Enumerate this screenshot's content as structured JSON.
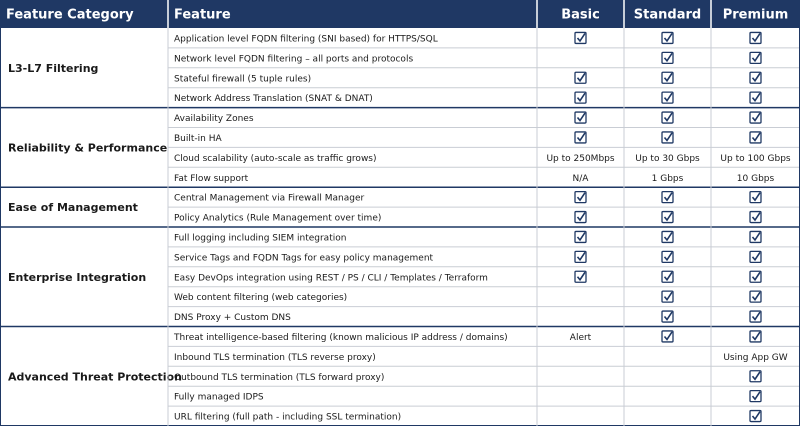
{
  "table": {
    "columns": [
      "Feature Category",
      "Feature",
      "Basic",
      "Standard",
      "Premium"
    ],
    "groups": [
      {
        "category": "L3-L7 Filtering",
        "rows": [
          {
            "feature": "Application level FQDN filtering (SNI based) for HTTPS/SQL",
            "cells": [
              true,
              true,
              true
            ]
          },
          {
            "feature": "Network level FQDN filtering – all ports and protocols",
            "cells": [
              null,
              true,
              true
            ]
          },
          {
            "feature": "Stateful firewall (5 tuple rules)",
            "cells": [
              true,
              true,
              true
            ]
          },
          {
            "feature": "Network Address Translation (SNAT & DNAT)",
            "cells": [
              true,
              true,
              true
            ]
          }
        ]
      },
      {
        "category": "Reliability & Performance",
        "rows": [
          {
            "feature": "Availability Zones",
            "cells": [
              true,
              true,
              true
            ]
          },
          {
            "feature": "Built-in HA",
            "cells": [
              true,
              true,
              true
            ]
          },
          {
            "feature": "Cloud scalability (auto-scale as traffic grows)",
            "cells": [
              "Up to 250Mbps",
              "Up to 30 Gbps",
              "Up to 100 Gbps"
            ]
          },
          {
            "feature": "Fat Flow support",
            "cells": [
              "N/A",
              "1 Gbps",
              "10 Gbps"
            ]
          }
        ]
      },
      {
        "category": "Ease of Management",
        "rows": [
          {
            "feature": "Central Management via Firewall Manager",
            "cells": [
              true,
              true,
              true
            ]
          },
          {
            "feature": "Policy Analytics (Rule Management over time)",
            "cells": [
              true,
              true,
              true
            ]
          }
        ]
      },
      {
        "category": "Enterprise Integration",
        "rows": [
          {
            "feature": "Full logging including SIEM integration",
            "cells": [
              true,
              true,
              true
            ]
          },
          {
            "feature": "Service Tags and FQDN Tags for easy policy management",
            "cells": [
              true,
              true,
              true
            ]
          },
          {
            "feature": "Easy DevOps integration using REST / PS / CLI / Templates / Terraform",
            "cells": [
              true,
              true,
              true
            ]
          },
          {
            "feature": "Web content filtering (web categories)",
            "cells": [
              null,
              true,
              true
            ]
          },
          {
            "feature": "DNS Proxy + Custom DNS",
            "cells": [
              null,
              true,
              true
            ]
          }
        ]
      },
      {
        "category": "Advanced Threat Protection",
        "rows": [
          {
            "feature": "Threat intelligence-based filtering (known malicious IP address / domains)",
            "cells": [
              "Alert",
              true,
              true
            ]
          },
          {
            "feature": "Inbound TLS termination (TLS reverse proxy)",
            "cells": [
              null,
              null,
              "Using App GW"
            ]
          },
          {
            "feature": "Outbound TLS termination (TLS forward proxy)",
            "cells": [
              null,
              null,
              true
            ]
          },
          {
            "feature": "Fully managed IDPS",
            "cells": [
              null,
              null,
              true
            ]
          },
          {
            "feature": "URL filtering (full path - including SSL termination)",
            "cells": [
              null,
              null,
              true
            ]
          }
        ]
      }
    ]
  }
}
